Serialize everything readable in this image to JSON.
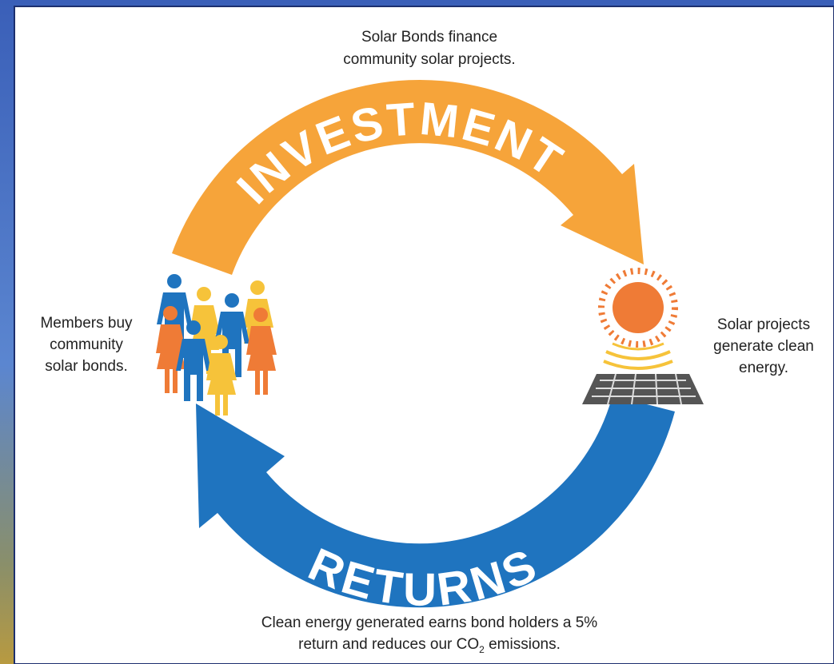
{
  "top_caption": [
    "Solar Bonds finance",
    "community solar projects."
  ],
  "investment_label": "INVESTMENT",
  "returns_label": "RETURNS",
  "left_caption": [
    "Members buy",
    "community",
    "solar bonds."
  ],
  "right_caption": [
    "Solar projects",
    "generate clean",
    "energy."
  ],
  "bottom_caption": {
    "line1": "Clean energy generated earns bond holders a 5%",
    "line2_before": "return and reduces our CO",
    "line2_sub": "2",
    "line2_after": " emissions."
  }
}
